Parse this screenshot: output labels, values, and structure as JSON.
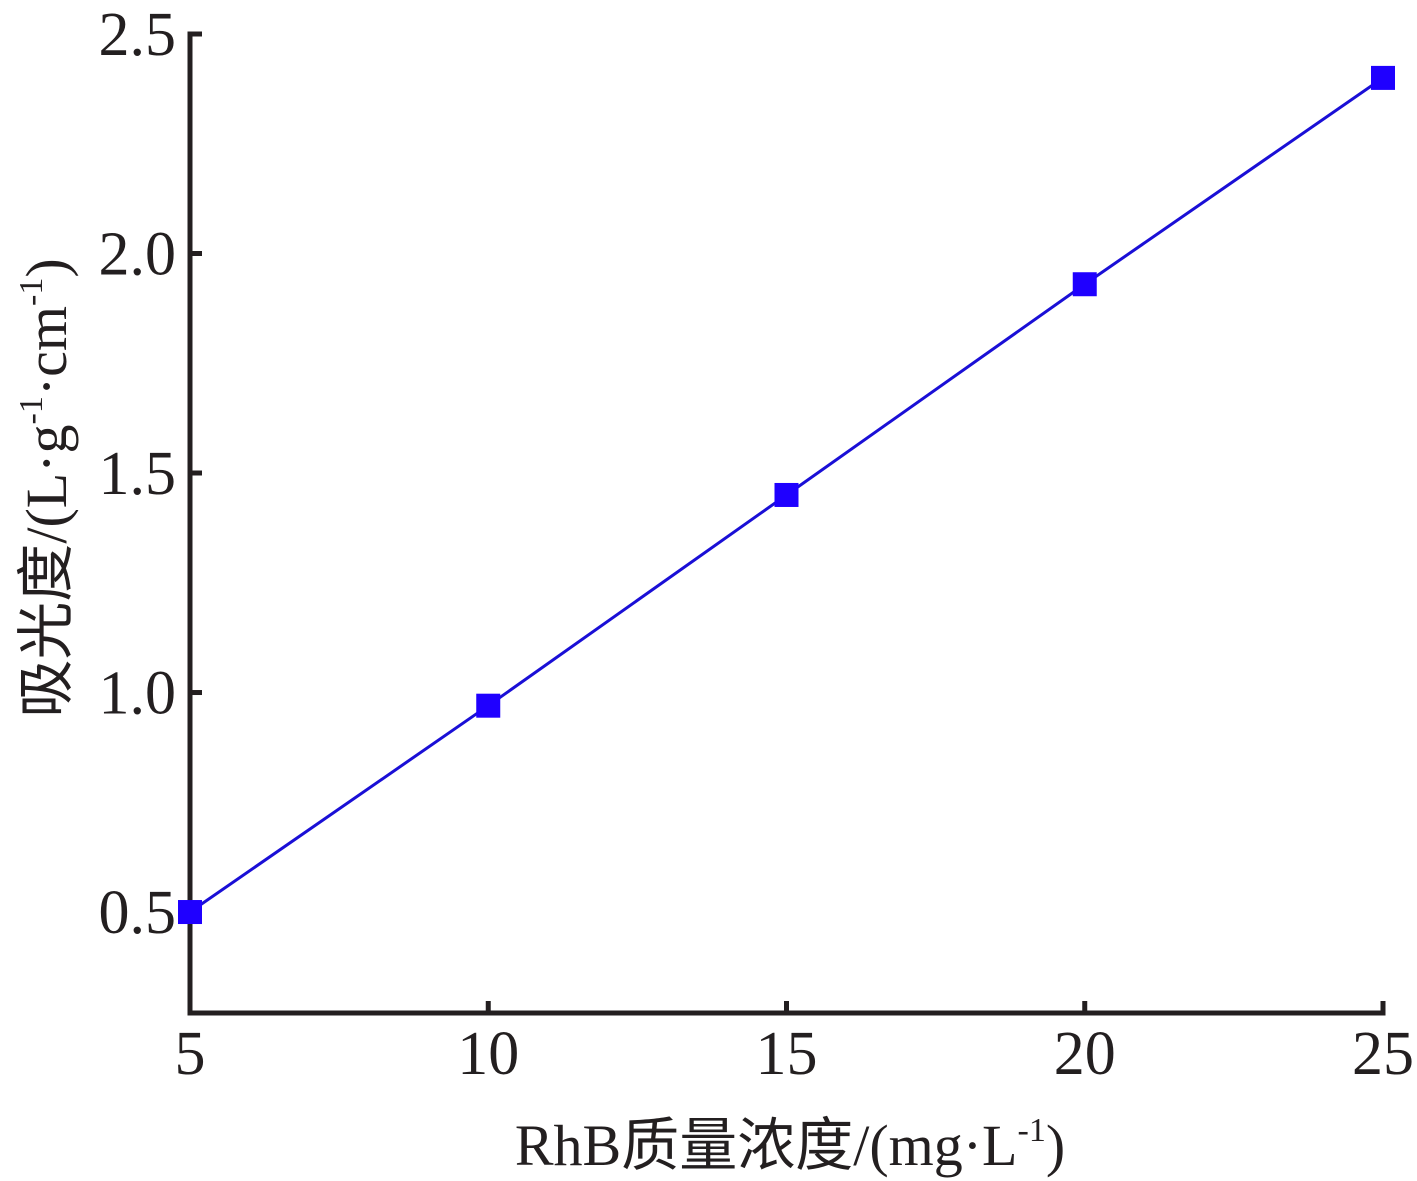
{
  "chart_data": {
    "type": "line",
    "x": [
      5,
      10,
      15,
      20,
      25
    ],
    "series": [
      {
        "values": [
          0.5,
          0.97,
          1.45,
          1.93,
          2.4
        ]
      }
    ],
    "xlabel": {
      "main": "RhB质量浓度/(mg·L",
      "sup": "-1",
      "close": ")"
    },
    "ylabel": {
      "part1": "吸光度/(L·g",
      "sup1": "-1",
      "part2": "·cm",
      "sup2": "-1",
      "close": ")"
    },
    "xlim": [
      5,
      25
    ],
    "ylim": [
      0.27,
      2.5
    ],
    "xticks": [
      5,
      10,
      15,
      20,
      25
    ],
    "xtick_labels": [
      "5",
      "10",
      "15",
      "20",
      "25"
    ],
    "yticks": [
      0.5,
      1.0,
      1.5,
      2.0,
      2.5
    ],
    "ytick_labels": [
      "0.5",
      "1.0",
      "1.5",
      "2.0",
      "2.5"
    ],
    "grid": false,
    "marker": "square",
    "line_color": "#1a0fd6",
    "marker_color": "#1f00ff"
  }
}
